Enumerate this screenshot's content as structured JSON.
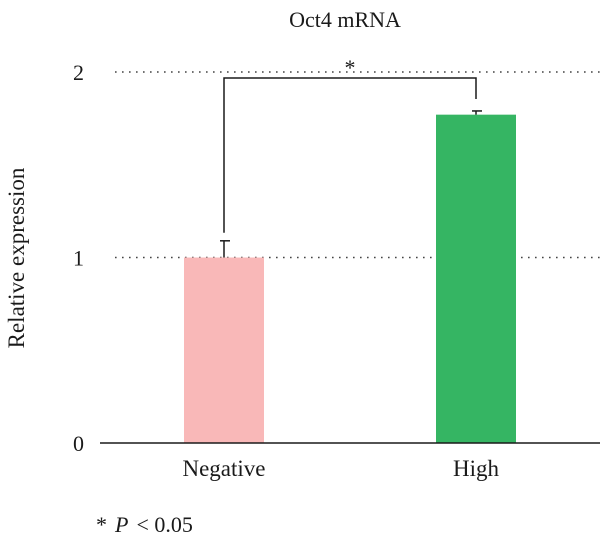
{
  "chart_data": {
    "type": "bar",
    "title": "Oct4 mRNA",
    "xlabel": "",
    "ylabel": "Relative expression",
    "categories": [
      "Negative",
      "High"
    ],
    "values": [
      1.0,
      1.77
    ],
    "errors": [
      0.09,
      0.02
    ],
    "colors": [
      "#f9b8b8",
      "#35b563"
    ],
    "ylim": [
      0,
      2
    ],
    "yticks": [
      "0",
      "1",
      "2"
    ],
    "grid": "dotted at y=1 and y=2",
    "significance": {
      "between": [
        "Negative",
        "High"
      ],
      "marker": "*"
    },
    "footnote": {
      "marker": "*",
      "p_label": "P",
      "relation": "< 0.05"
    }
  }
}
